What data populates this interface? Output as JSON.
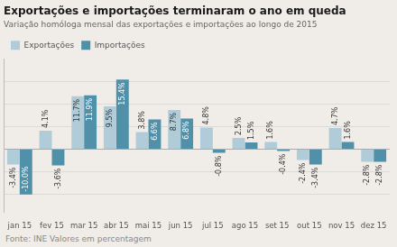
{
  "chart_data": {
    "type": "bar",
    "title": "Exportações e importações terminaram o ano em queda",
    "subtitle": "Variação homóloga mensal das exportações e importações ao longo de 2015",
    "footnote": "Fonte: INE Valores em percentagem",
    "categories": [
      "jan 15",
      "fev 15",
      "mar 15",
      "abr 15",
      "mai 15",
      "jun 15",
      "jul 15",
      "ago 15",
      "set 15",
      "out 15",
      "nov 15",
      "dez 15"
    ],
    "series": [
      {
        "name": "Exportações",
        "color": "#b0ccd8",
        "values": [
          -3.4,
          4.1,
          11.7,
          9.5,
          3.8,
          8.7,
          4.8,
          2.5,
          1.6,
          -2.4,
          4.7,
          -2.8
        ],
        "value_labels": [
          "-3.4%",
          "4.1%",
          "11.7%",
          "9.5%",
          "3.8%",
          "8.7%",
          "4.8%",
          "2.5%",
          "1.6%",
          "-2.4%",
          "4.7%",
          "-2.8%"
        ]
      },
      {
        "name": "Importações",
        "color": "#5090a8",
        "values": [
          -10.0,
          -3.6,
          11.9,
          15.4,
          6.6,
          6.8,
          -0.8,
          1.5,
          -0.4,
          -3.4,
          1.6,
          -2.8
        ],
        "value_labels": [
          "-10.0%",
          "-3.6%",
          "11.9%",
          "15.4%",
          "6.6%",
          "6.8%",
          "-0.8%",
          "1.5%",
          "-0.4%",
          "-3.4%",
          "1.6%",
          "-2.8%"
        ]
      }
    ],
    "ylim": [
      -14.0,
      20.0
    ],
    "yticks": [
      -10,
      -5,
      0,
      5,
      10,
      15
    ],
    "grid": true,
    "legend": "top left",
    "data_labels": true,
    "tick_labels": "x"
  }
}
